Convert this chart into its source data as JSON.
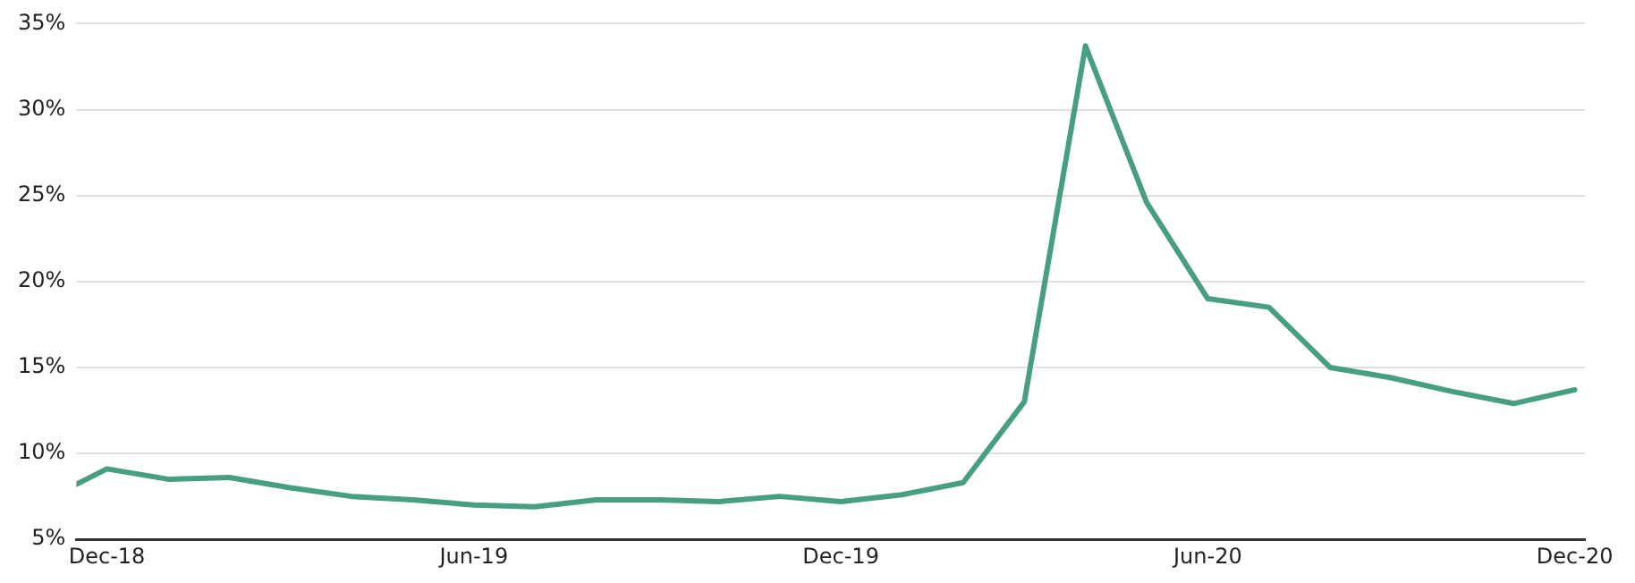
{
  "chart_data": {
    "type": "line",
    "x": [
      "2018-11-16",
      "2018-12",
      "2019-01",
      "2019-02",
      "2019-03",
      "2019-04",
      "2019-05",
      "2019-06",
      "2019-07",
      "2019-08",
      "2019-09",
      "2019-10",
      "2019-11",
      "2019-12",
      "2020-01",
      "2020-02",
      "2020-03",
      "2020-04",
      "2020-05",
      "2020-06",
      "2020-07",
      "2020-08",
      "2020-09",
      "2020-10",
      "2020-11",
      "2020-12"
    ],
    "series": [
      {
        "color": "#479e83",
        "values": [
          8.2,
          9.1,
          8.5,
          8.6,
          8.0,
          7.5,
          7.3,
          7.0,
          6.9,
          7.3,
          7.3,
          7.2,
          7.5,
          7.2,
          7.6,
          8.3,
          13.0,
          33.7,
          24.6,
          19.0,
          18.5,
          15.0,
          14.4,
          13.6,
          12.9,
          13.7
        ]
      }
    ],
    "xlim": [
      "2018-11-16",
      "2020-12-06"
    ],
    "xticks": [
      {
        "value": "2018-12",
        "label": "Dec-18"
      },
      {
        "value": "2019-06",
        "label": "Jun-19"
      },
      {
        "value": "2019-12",
        "label": "Dec-19"
      },
      {
        "value": "2020-06",
        "label": "Jun-20"
      },
      {
        "value": "2020-12",
        "label": "Dec-20"
      }
    ],
    "ylim": [
      5,
      35
    ],
    "yticks": [
      {
        "value": 5,
        "label": "5%"
      },
      {
        "value": 10,
        "label": "10%"
      },
      {
        "value": 15,
        "label": "15%"
      },
      {
        "value": 20,
        "label": "20%"
      },
      {
        "value": 25,
        "label": "25%"
      },
      {
        "value": 30,
        "label": "30%"
      },
      {
        "value": 35,
        "label": "35%"
      }
    ],
    "grid": "y",
    "legend": false,
    "marker": "none",
    "line_style": "solid"
  }
}
